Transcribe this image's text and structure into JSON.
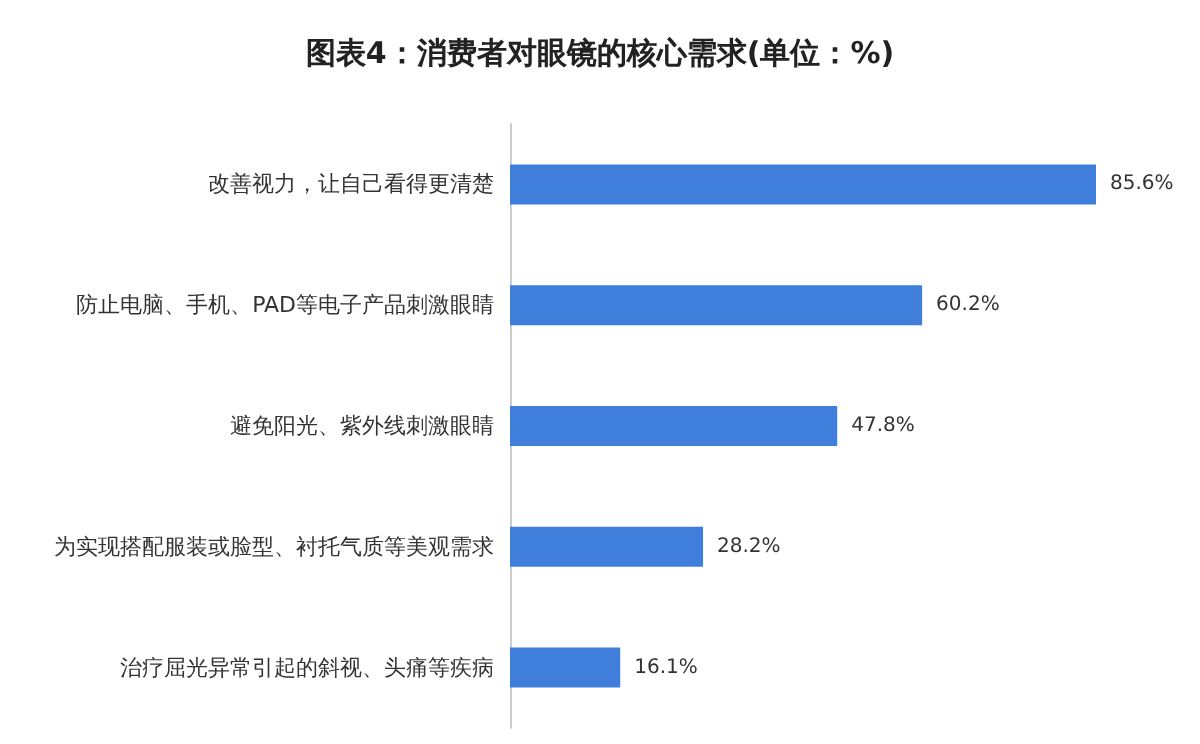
{
  "chart_data": {
    "type": "bar",
    "orientation": "horizontal",
    "title": "图表4：消费者对眼镜的核心需求(单位：%)",
    "categories": [
      "改善视力，让自己看得更清楚",
      "防止电脑、手机、PAD等电子产品刺激眼睛",
      "避免阳光、紫外线刺激眼睛",
      "为实现搭配服装或脸型、衬托气质等美观需求",
      "治疗屈光异常引起的斜视、头痛等疾病"
    ],
    "values": [
      85.6,
      60.2,
      47.8,
      28.2,
      16.1
    ],
    "value_labels": [
      "85.6%",
      "60.2%",
      "47.8%",
      "28.2%",
      "16.1%"
    ],
    "color": "#3f7fdb"
  }
}
